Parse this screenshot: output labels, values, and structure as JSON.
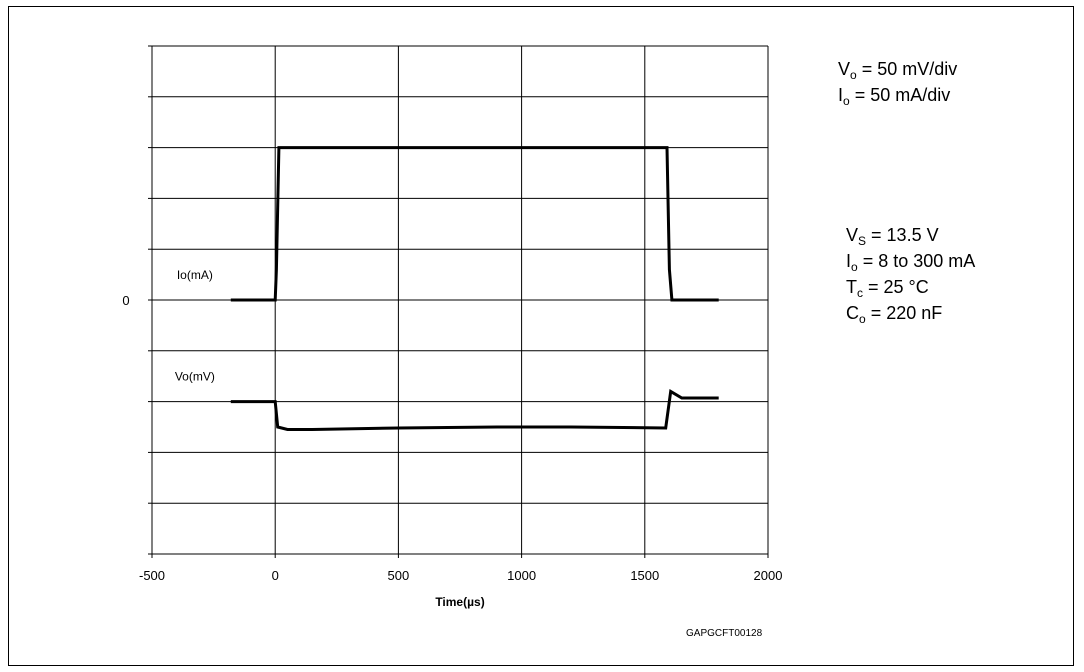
{
  "chart_data": {
    "type": "line",
    "xlabel": "Time(µs)",
    "x_ticks": [
      -500,
      0,
      500,
      1000,
      1500,
      2000
    ],
    "xlim": [
      -500,
      2000
    ],
    "y_ticks": [
      {
        "value": 0,
        "label": "0"
      }
    ],
    "y_divisions": 10,
    "ylim": [
      -5,
      5
    ],
    "grid": true,
    "series": [
      {
        "name": "Io(mA)",
        "points": [
          [
            -180,
            0
          ],
          [
            0,
            0
          ],
          [
            5,
            0.6
          ],
          [
            15,
            3
          ],
          [
            1590,
            3
          ],
          [
            1600,
            0.6
          ],
          [
            1610,
            0
          ],
          [
            1800,
            0
          ]
        ]
      },
      {
        "name": "Vo(mV)",
        "points": [
          [
            -180,
            -2
          ],
          [
            0,
            -2
          ],
          [
            10,
            -2.5
          ],
          [
            50,
            -2.55
          ],
          [
            150,
            -2.55
          ],
          [
            500,
            -2.52
          ],
          [
            900,
            -2.5
          ],
          [
            1200,
            -2.5
          ],
          [
            1585,
            -2.52
          ],
          [
            1605,
            -1.8
          ],
          [
            1650,
            -1.93
          ],
          [
            1800,
            -1.93
          ]
        ]
      }
    ]
  },
  "annotations": {
    "scale": [
      {
        "sym": "V",
        "sub": "o",
        "rest": " = 50 mV/div"
      },
      {
        "sym": "I",
        "sub": "o",
        "rest": " = 50 mA/div"
      }
    ],
    "conditions": [
      {
        "sym": "V",
        "sub": "S",
        "rest": " = 13.5 V"
      },
      {
        "sym": "I",
        "sub": "o",
        "rest": " = 8 to 300 mA"
      },
      {
        "sym": "T",
        "sub": "c",
        "rest": " = 25 °C"
      },
      {
        "sym": "C",
        "sub": "o",
        "rest": " = 220 nF"
      }
    ]
  },
  "figure_code": "GAPGCFT00128"
}
